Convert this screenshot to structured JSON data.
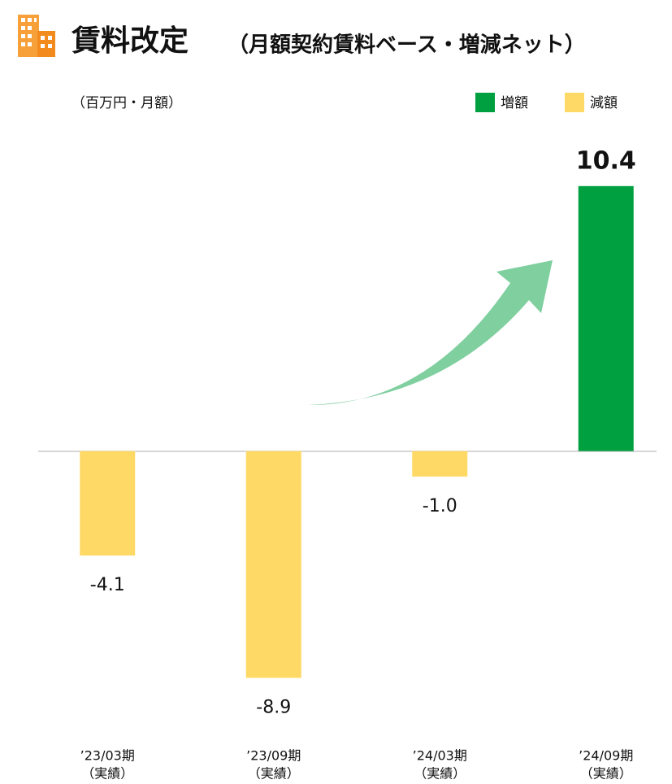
{
  "chart_data": {
    "type": "bar",
    "title": "賃料改定",
    "subtitle": "（月額契約賃料ベース・増減ネット）",
    "unit_label": "（百万円・月額）",
    "legend": [
      {
        "name": "増額",
        "color": "#00a040"
      },
      {
        "name": "減額",
        "color": "#ffd966"
      }
    ],
    "categories": [
      "’23/03期",
      "’23/09期",
      "’24/03期",
      "’24/09期"
    ],
    "category_sublabels": [
      "（実績）",
      "（実績）",
      "（実績）",
      "（実績）"
    ],
    "values": [
      -4.1,
      -8.9,
      -1.0,
      10.4
    ],
    "value_labels": [
      "-4.1",
      "-8.9",
      "-1.0",
      "10.4"
    ],
    "colors": [
      "#ffd966",
      "#ffd966",
      "#ffd966",
      "#00a040"
    ],
    "ylim": [
      -10,
      11
    ]
  }
}
